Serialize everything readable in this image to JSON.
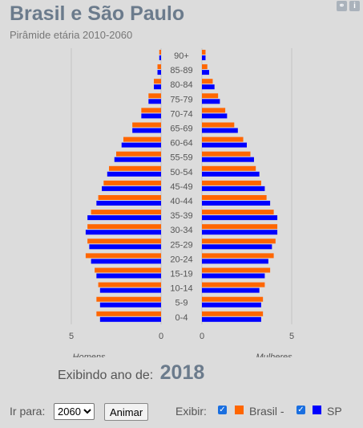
{
  "header": {
    "title": "Brasil e São Paulo",
    "subtitle": "Pirâmide etária 2010-2060"
  },
  "icons": [
    "link-icon",
    "info-icon"
  ],
  "footer": {
    "year_prefix": "Exibindo ano de:",
    "year_value": "2018",
    "go_to_label": "Ir para:",
    "selected_year": "2060",
    "animate_label": "Animar",
    "show_label": "Exibir:",
    "brasil_label": "Brasil -",
    "sp_label": "SP"
  },
  "colors": {
    "brasil": "#ff6600",
    "sp": "#0000ff"
  },
  "chart_data": {
    "type": "bar",
    "orientation": "horizontal",
    "categories": [
      "0-4",
      "5-9",
      "10-14",
      "15-19",
      "20-24",
      "25-29",
      "30-34",
      "35-39",
      "40-44",
      "45-49",
      "50-54",
      "55-59",
      "60-64",
      "65-69",
      "70-74",
      "75-79",
      "80-84",
      "85-89",
      "90+"
    ],
    "series": [
      {
        "name": "Brasil",
        "side": "Homens",
        "color": "#ff6600",
        "values": [
          3.6,
          3.6,
          3.5,
          3.7,
          4.2,
          4.1,
          4.1,
          3.9,
          3.5,
          3.2,
          2.9,
          2.5,
          2.1,
          1.6,
          1.1,
          0.7,
          0.4,
          0.2,
          0.1
        ]
      },
      {
        "name": "SP",
        "side": "Homens",
        "color": "#0000ff",
        "values": [
          3.4,
          3.4,
          3.4,
          3.6,
          3.9,
          4.0,
          4.2,
          4.1,
          3.6,
          3.3,
          3.0,
          2.6,
          2.2,
          1.6,
          1.1,
          0.7,
          0.4,
          0.2,
          0.1
        ]
      },
      {
        "name": "Brasil",
        "side": "Mulheres",
        "color": "#ff6600",
        "values": [
          3.4,
          3.4,
          3.5,
          3.8,
          4.0,
          4.1,
          4.2,
          4.0,
          3.6,
          3.3,
          3.0,
          2.7,
          2.3,
          1.8,
          1.3,
          0.9,
          0.6,
          0.3,
          0.2
        ]
      },
      {
        "name": "SP",
        "side": "Mulheres",
        "color": "#0000ff",
        "values": [
          3.3,
          3.3,
          3.2,
          3.5,
          3.7,
          3.9,
          4.2,
          4.2,
          3.8,
          3.5,
          3.2,
          2.9,
          2.5,
          2.0,
          1.4,
          1.0,
          0.7,
          0.4,
          0.2
        ]
      }
    ],
    "xlabel_left": "Homens",
    "xlabel_right": "Mulheres",
    "xticks_left": [
      "5",
      "0"
    ],
    "xticks_right": [
      "0",
      "5"
    ],
    "xlim": [
      0,
      7
    ],
    "grid": true
  }
}
